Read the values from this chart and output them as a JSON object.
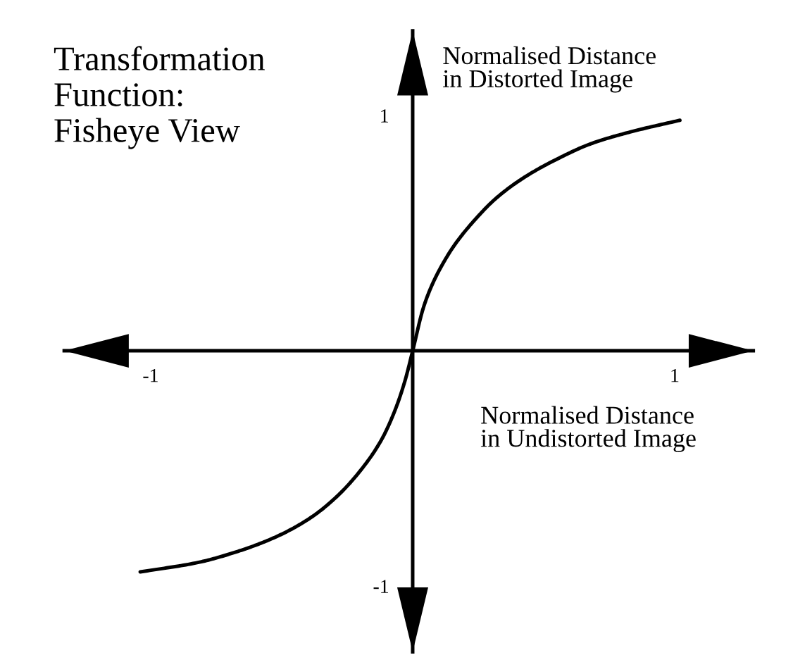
{
  "chart_data": {
    "type": "line",
    "title": "Transformation\nFunction:\nFisheye View",
    "xlabel": "Normalised Distance\nin Undistorted Image",
    "ylabel": "Normalised Distance\nin Distorted Image",
    "x": [
      -1.04,
      -0.82,
      -0.66,
      -0.52,
      -0.39,
      -0.29,
      -0.2,
      -0.12,
      -0.07,
      -0.03,
      0,
      0.04,
      0.07,
      0.11,
      0.16,
      0.24,
      0.32,
      0.43,
      0.56,
      0.68,
      0.83,
      1.02
    ],
    "series": [
      {
        "color": "#000000",
        "values": [
          -0.94,
          -0.9,
          -0.85,
          -0.79,
          -0.71,
          -0.62,
          -0.51,
          -0.38,
          -0.26,
          -0.13,
          0,
          0.18,
          0.27,
          0.36,
          0.45,
          0.56,
          0.65,
          0.74,
          0.82,
          0.88,
          0.93,
          0.98
        ]
      }
    ],
    "xlim": [
      -1.33,
      1.3
    ],
    "ylim": [
      -1.28,
      1.36
    ],
    "xticks": [
      -1,
      1
    ],
    "yticks": [
      -1,
      1
    ]
  }
}
